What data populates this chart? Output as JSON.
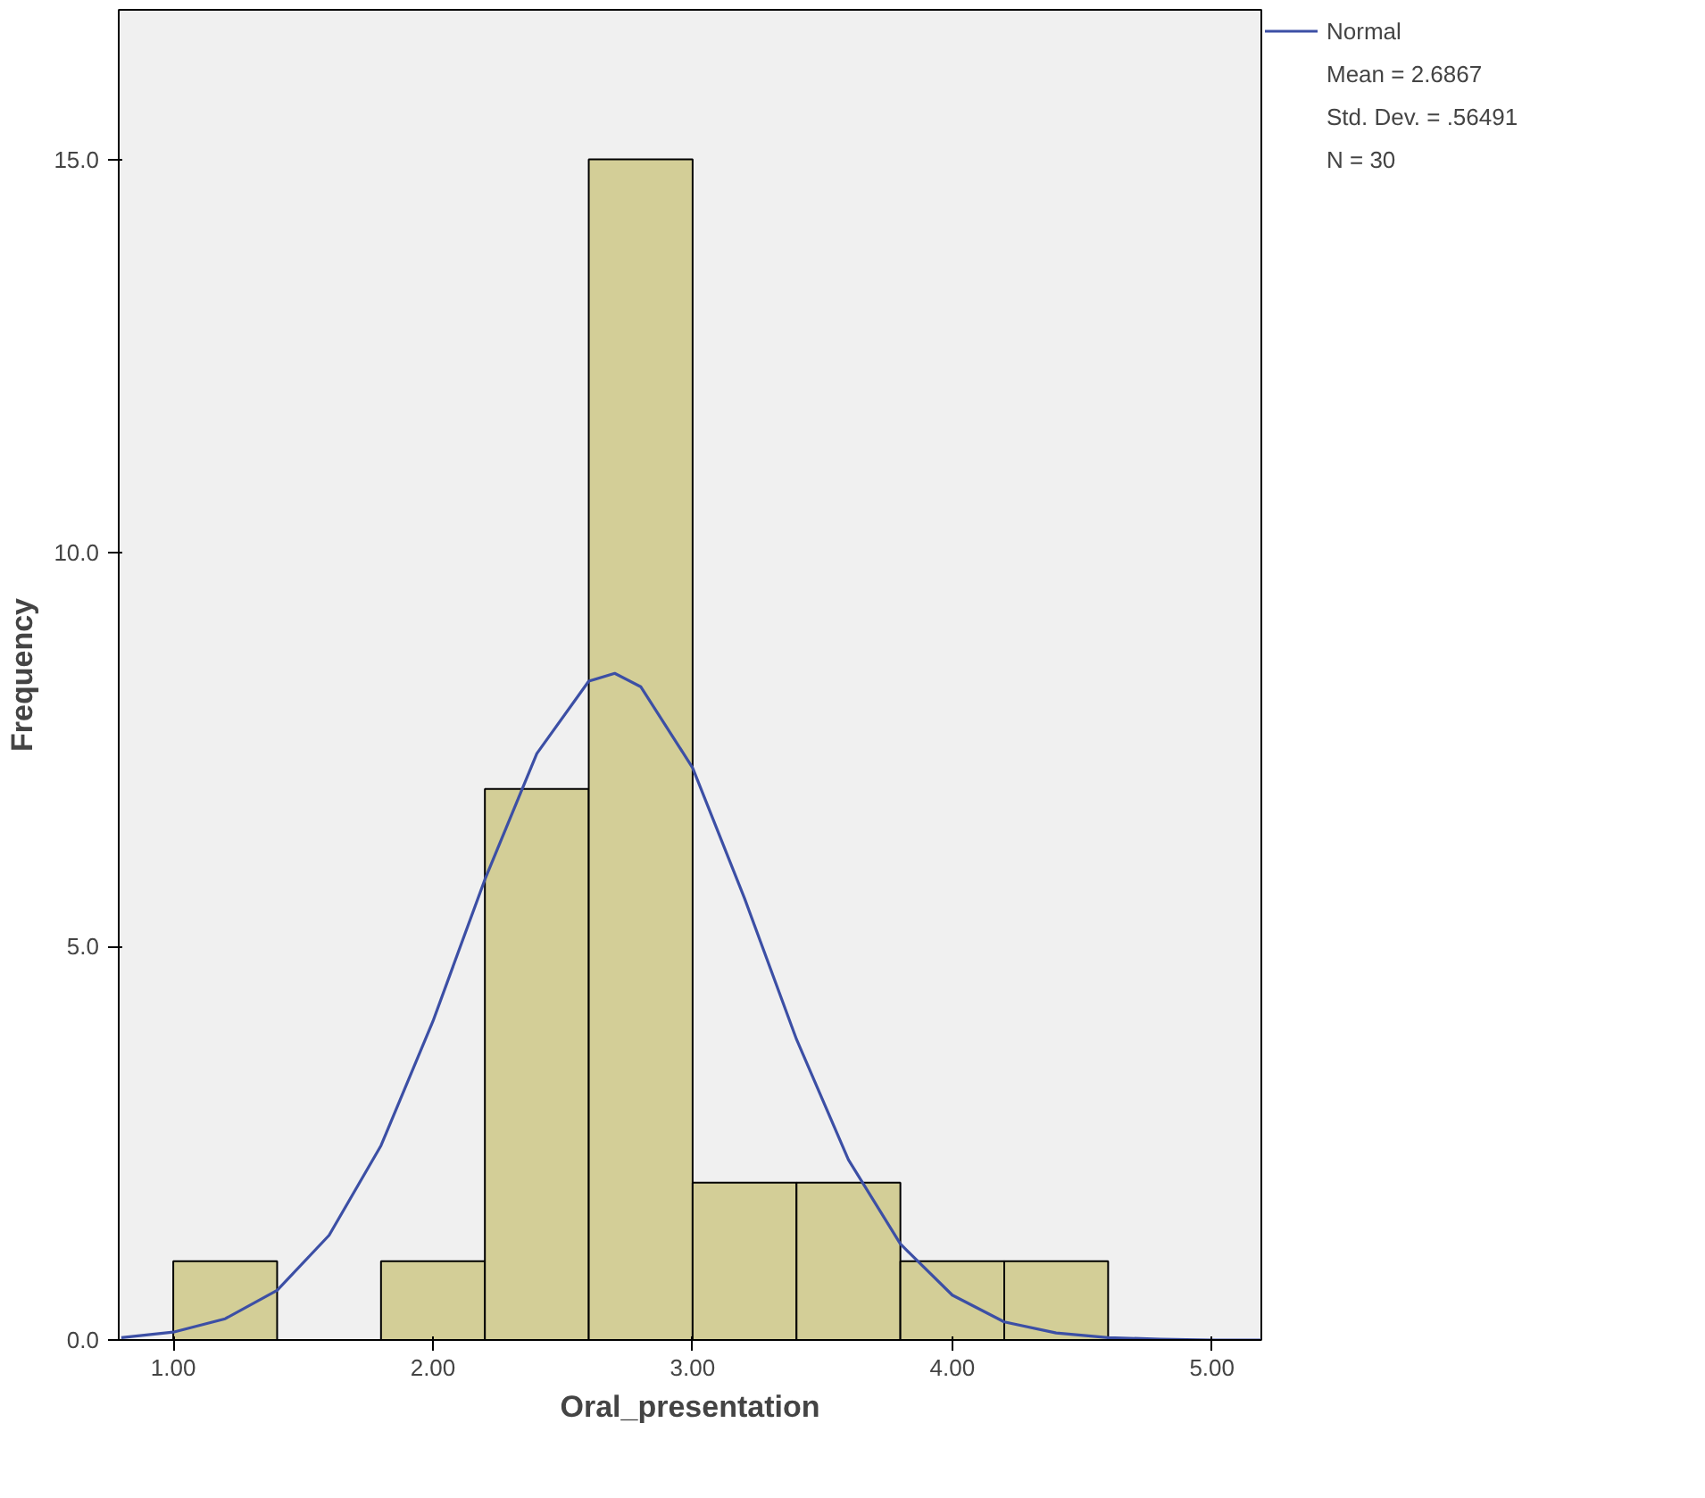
{
  "chart_data": {
    "type": "histogram",
    "xlabel": "Oral_presentation",
    "ylabel": "Frequency",
    "bins": [
      1.0,
      1.4,
      1.8,
      2.2,
      2.6,
      3.0,
      3.4,
      3.8,
      4.2,
      4.6
    ],
    "values": [
      1,
      0,
      1,
      7,
      15,
      2,
      2,
      1,
      1
    ],
    "color": "#d3ce97",
    "series": [
      {
        "name": "Normal",
        "type": "line",
        "color": "#3c4fa5",
        "x": [
          0.8,
          1.0,
          1.2,
          1.4,
          1.6,
          1.8,
          2.0,
          2.2,
          2.4,
          2.6,
          2.7,
          2.8,
          3.0,
          3.2,
          3.4,
          3.6,
          3.8,
          4.0,
          4.2,
          4.4,
          4.6,
          4.8,
          5.0,
          5.19
        ],
        "values": [
          0.03,
          0.1,
          0.27,
          0.63,
          1.33,
          2.47,
          4.05,
          5.85,
          7.45,
          8.37,
          8.47,
          8.3,
          7.27,
          5.61,
          3.82,
          2.29,
          1.22,
          0.57,
          0.23,
          0.09,
          0.03,
          0.01,
          0.0,
          0.0
        ]
      }
    ],
    "xlim": [
      0.79,
      5.19
    ],
    "ylim": [
      0,
      16.9
    ],
    "xticks": [
      {
        "value": 1,
        "label": "1.00"
      },
      {
        "value": 2,
        "label": "2.00"
      },
      {
        "value": 3,
        "label": "3.00"
      },
      {
        "value": 4,
        "label": "4.00"
      },
      {
        "value": 5,
        "label": "5.00"
      }
    ],
    "yticks": [
      {
        "value": 0,
        "label": "0.0"
      },
      {
        "value": 5,
        "label": "5.0"
      },
      {
        "value": 10,
        "label": "10.0"
      },
      {
        "value": 15,
        "label": "15.0"
      }
    ],
    "legend": "top right",
    "annotations": [
      "Mean = 2.6867",
      "Std. Dev. = .56491",
      "N = 30"
    ]
  }
}
